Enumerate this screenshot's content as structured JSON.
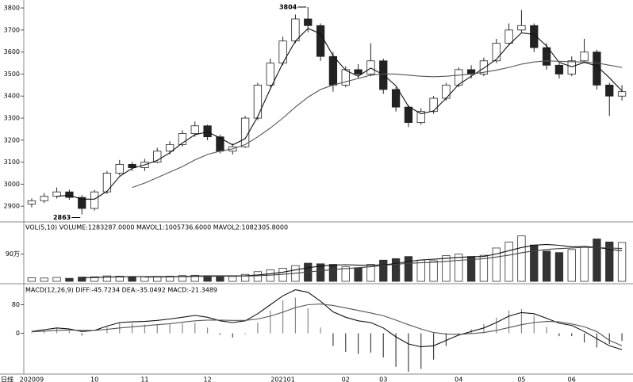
{
  "chart_data": [
    {
      "type": "candlestick",
      "period": "日线",
      "peak_label": "3804",
      "low_label": "2863",
      "categories": [
        "202009",
        null,
        null,
        null,
        null,
        "10",
        null,
        null,
        null,
        "11",
        null,
        null,
        null,
        null,
        "12",
        null,
        null,
        null,
        null,
        null,
        "202101",
        null,
        null,
        null,
        null,
        "02",
        null,
        null,
        "03",
        null,
        null,
        null,
        null,
        null,
        "04",
        null,
        null,
        null,
        null,
        "05",
        null,
        null,
        null,
        "06",
        null,
        null,
        null,
        null
      ],
      "open": [
        2910,
        2925,
        2945,
        2965,
        2940,
        2890,
        2965,
        3050,
        3090,
        3075,
        3100,
        3150,
        3180,
        3230,
        3265,
        3215,
        3150,
        3170,
        3300,
        3450,
        3550,
        3650,
        3750,
        3720,
        3580,
        3450,
        3520,
        3500,
        3560,
        3430,
        3350,
        3280,
        3330,
        3390,
        3450,
        3520,
        3500,
        3560,
        3640,
        3700,
        3720,
        3620,
        3540,
        3500,
        3560,
        3600,
        3450,
        3400
      ],
      "high": [
        2935,
        2960,
        2985,
        2975,
        2950,
        2975,
        3060,
        3110,
        3100,
        3115,
        3165,
        3195,
        3245,
        3285,
        3270,
        3225,
        3185,
        3310,
        3460,
        3570,
        3670,
        3770,
        3804,
        3730,
        3600,
        3535,
        3545,
        3640,
        3570,
        3440,
        3360,
        3345,
        3400,
        3460,
        3530,
        3540,
        3575,
        3660,
        3730,
        3790,
        3730,
        3640,
        3550,
        3580,
        3660,
        3610,
        3460,
        3450
      ],
      "low": [
        2895,
        2915,
        2935,
        2930,
        2863,
        2880,
        2955,
        3040,
        3060,
        3060,
        3095,
        3135,
        3170,
        3215,
        3200,
        3140,
        3135,
        3165,
        3290,
        3440,
        3540,
        3640,
        3690,
        3560,
        3420,
        3440,
        3480,
        3490,
        3410,
        3330,
        3260,
        3270,
        3320,
        3380,
        3440,
        3480,
        3490,
        3550,
        3630,
        3690,
        3600,
        3520,
        3480,
        3490,
        3550,
        3430,
        3310,
        3380
      ],
      "close": [
        2925,
        2945,
        2965,
        2940,
        2890,
        2965,
        3050,
        3090,
        3075,
        3100,
        3150,
        3180,
        3230,
        3265,
        3215,
        3150,
        3170,
        3300,
        3450,
        3550,
        3650,
        3750,
        3720,
        3580,
        3450,
        3520,
        3500,
        3560,
        3430,
        3350,
        3280,
        3330,
        3390,
        3450,
        3520,
        3500,
        3560,
        3640,
        3700,
        3720,
        3620,
        3540,
        3500,
        3560,
        3600,
        3450,
        3400,
        3420
      ],
      "ma_lines": [
        {
          "color": "#111111",
          "values": [
            null,
            null,
            2945,
            2950,
            2932,
            2932,
            2968,
            3035,
            3072,
            3088,
            3108,
            3143,
            3187,
            3225,
            3237,
            3210,
            3178,
            3207,
            3307,
            3433,
            3550,
            3650,
            3707,
            3683,
            3583,
            3517,
            3490,
            3527,
            3497,
            3447,
            3353,
            3320,
            3333,
            3390,
            3453,
            3490,
            3527,
            3567,
            3633,
            3687,
            3680,
            3627,
            3553,
            3533,
            3553,
            3537,
            3483,
            3423
          ]
        },
        {
          "color": "#555555",
          "values": [
            null,
            null,
            null,
            null,
            null,
            null,
            null,
            null,
            2985,
            3005,
            3030,
            3055,
            3080,
            3110,
            3135,
            3150,
            3160,
            3180,
            3215,
            3255,
            3300,
            3350,
            3395,
            3430,
            3450,
            3465,
            3480,
            3495,
            3500,
            3500,
            3495,
            3490,
            3488,
            3490,
            3495,
            3500,
            3508,
            3518,
            3530,
            3545,
            3555,
            3560,
            3558,
            3556,
            3555,
            3550,
            3540,
            3530
          ]
        }
      ],
      "ylim": [
        2836,
        3829
      ],
      "yticks": [
        2900,
        3000,
        3100,
        3200,
        3300,
        3400,
        3500,
        3600,
        3700,
        3800
      ]
    },
    {
      "type": "bar",
      "title": "VOL(5,10) VOLUME:1283287.0000 MAVOL1:1005736.6000 MAVOL2:1082305.8000",
      "values": [
        120000,
        110000,
        130000,
        100000,
        140000,
        150000,
        180000,
        170000,
        140000,
        150000,
        160000,
        170000,
        190000,
        200000,
        180000,
        170000,
        160000,
        230000,
        320000,
        380000,
        430000,
        520000,
        600000,
        580000,
        560000,
        480000,
        450000,
        560000,
        700000,
        750000,
        820000,
        700000,
        680000,
        850000,
        900000,
        820000,
        860000,
        1100000,
        1300000,
        1500000,
        1200000,
        1000000,
        950000,
        1050000,
        1150000,
        1400000,
        1300000,
        1283287
      ],
      "lines": [
        {
          "color": "#111111",
          "values": [
            null,
            null,
            null,
            null,
            120000,
            126000,
            140000,
            148000,
            156000,
            158000,
            160000,
            158000,
            162000,
            174000,
            180000,
            182000,
            180000,
            186000,
            212000,
            252000,
            304000,
            376000,
            450000,
            506000,
            538000,
            548000,
            534000,
            526000,
            550000,
            588000,
            656000,
            706000,
            730000,
            760000,
            790000,
            814000,
            822000,
            906000,
            1012000,
            1116000,
            1192000,
            1220000,
            1190000,
            1140000,
            1150000,
            1120000,
            1060000,
            1005736.6
          ]
        },
        {
          "color": "#444444",
          "values": [
            null,
            null,
            null,
            null,
            null,
            null,
            null,
            null,
            null,
            139000,
            142000,
            147000,
            153000,
            161000,
            165000,
            168000,
            170000,
            176000,
            187000,
            205000,
            232000,
            267000,
            308000,
            349000,
            389000,
            420000,
            449000,
            482000,
            528000,
            566000,
            596000,
            613000,
            629000,
            658000,
            692000,
            718000,
            748000,
            802000,
            866000,
            944000,
            1003000,
            1053000,
            1080000,
            1099000,
            1124000,
            1110000,
            1100000,
            1082305.8
          ]
        }
      ],
      "ylim": [
        0,
        1700000
      ],
      "yticks": [
        {
          "value": 900000,
          "label": "90万"
        }
      ]
    },
    {
      "type": "macd",
      "title": "MACD(12,26,9) DIFF:-45.7234 DEA:-35.0492 MACD:-21.3489",
      "diff": [
        5,
        10,
        15,
        12,
        5,
        8,
        20,
        30,
        32,
        33,
        36,
        40,
        45,
        50,
        45,
        35,
        30,
        35,
        55,
        80,
        105,
        122,
        115,
        90,
        60,
        45,
        35,
        30,
        15,
        -10,
        -30,
        -38,
        -35,
        -20,
        -5,
        5,
        15,
        30,
        48,
        58,
        55,
        42,
        28,
        22,
        5,
        -15,
        -35,
        -45.7234
      ],
      "dea": [
        4,
        6,
        8,
        9,
        8,
        8,
        11,
        15,
        18,
        21,
        24,
        27,
        31,
        35,
        37,
        37,
        36,
        36,
        40,
        48,
        59,
        72,
        80,
        82,
        78,
        71,
        64,
        57,
        49,
        37,
        24,
        12,
        2,
        -2,
        -3,
        -1,
        2,
        8,
        16,
        24,
        30,
        33,
        32,
        26,
        18,
        5,
        -20,
        -35.0492
      ],
      "macd": [
        2,
        8,
        14,
        6,
        -6,
        0,
        18,
        30,
        28,
        24,
        24,
        26,
        28,
        30,
        16,
        -4,
        -12,
        -2,
        30,
        64,
        92,
        100,
        70,
        16,
        -36,
        -52,
        -58,
        -54,
        -68,
        -94,
        -108,
        -100,
        -74,
        -36,
        -4,
        12,
        26,
        44,
        64,
        68,
        50,
        18,
        -8,
        -8,
        -26,
        -40,
        -30,
        -21.3489
      ],
      "colors": {
        "diff": "#111111",
        "dea": "#555555",
        "bar": "#888888"
      },
      "ylim": [
        -110,
        130
      ],
      "yticks": [
        0,
        80
      ]
    }
  ]
}
